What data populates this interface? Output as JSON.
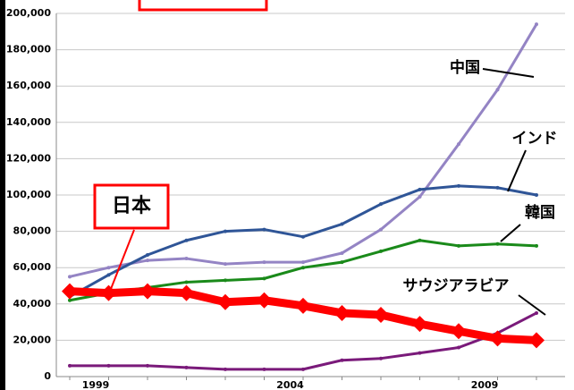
{
  "chart_data": {
    "type": "line",
    "categories": [
      "1999",
      null,
      null,
      null,
      null,
      "2004",
      null,
      null,
      null,
      null,
      "2009",
      null,
      null
    ],
    "ylim": [
      0,
      200000
    ],
    "yticks": [
      0,
      {
        "value": 20000,
        "label": "20,000"
      },
      {
        "value": 40000,
        "label": "40,000"
      },
      {
        "value": 60000,
        "label": "60,000"
      },
      {
        "value": 80000,
        "label": "80,000"
      },
      {
        "value": 100000,
        "label": "100,000"
      },
      {
        "value": 120000,
        "label": "120,000"
      },
      {
        "value": 140000,
        "label": "140,000"
      },
      {
        "value": 160000,
        "label": "160,000"
      },
      {
        "value": 180000,
        "label": "180,000"
      },
      {
        "value": 200000,
        "label": "200,000"
      }
    ],
    "grid": true,
    "series": [
      {
        "name": "中国",
        "color": "#9484c4",
        "line_width": 3,
        "values": [
          55000,
          60000,
          64000,
          65000,
          62000,
          63000,
          63000,
          68000,
          81000,
          99000,
          128000,
          158000,
          194000
        ]
      },
      {
        "name": "インド",
        "color": "#2f5597",
        "line_width": 3,
        "values": [
          44000,
          56000,
          67000,
          75000,
          80000,
          81000,
          77000,
          84000,
          95000,
          103000,
          105000,
          104000,
          100000
        ]
      },
      {
        "name": "韓国",
        "color": "#1a8a1a",
        "line_width": 3,
        "values": [
          42000,
          46000,
          49000,
          52000,
          53000,
          54000,
          60000,
          63000,
          69000,
          75000,
          72000,
          73000,
          72000
        ]
      },
      {
        "name": "サウジアラビア",
        "color": "#7a1a7a",
        "line_width": 3,
        "values": [
          6000,
          6000,
          6000,
          5000,
          4000,
          4000,
          4000,
          9000,
          10000,
          13000,
          16000,
          24000,
          35000
        ]
      },
      {
        "name": "日本",
        "color": "#ff0000",
        "line_width": 9,
        "marker": "diamond",
        "values": [
          47000,
          46000,
          47000,
          46000,
          41000,
          42000,
          39000,
          35000,
          34000,
          29000,
          25000,
          21000,
          20000
        ]
      }
    ]
  }
}
